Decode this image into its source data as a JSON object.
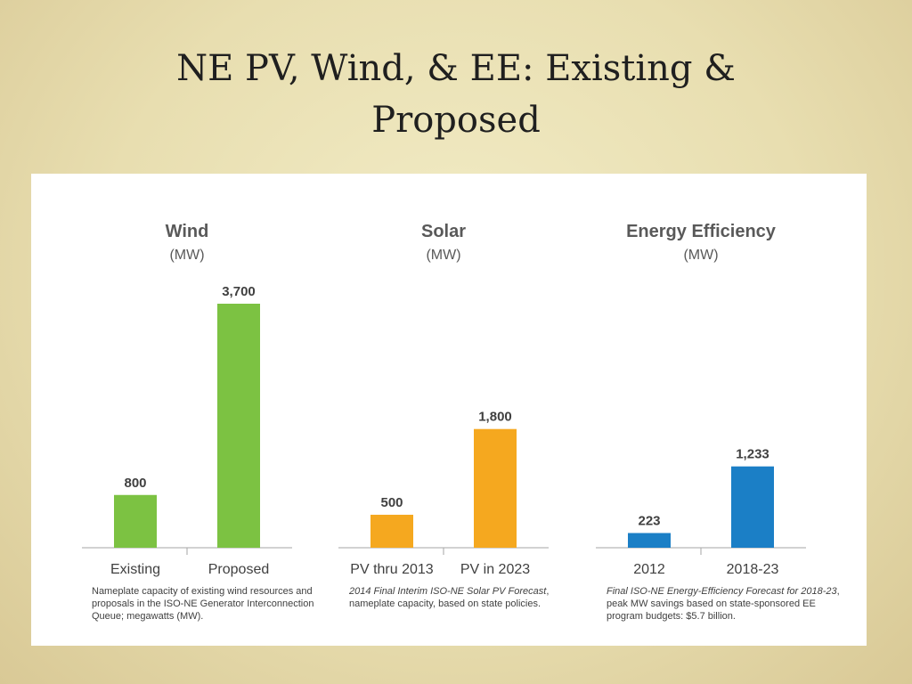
{
  "slide": {
    "title_line1": "NE PV, Wind, & EE: Existing &",
    "title_line2": "Proposed"
  },
  "chart_data": [
    {
      "type": "bar",
      "title": "Wind",
      "unit": "(MW)",
      "categories": [
        "Existing",
        "Proposed"
      ],
      "values": [
        800,
        3700
      ],
      "value_labels": [
        "800",
        "3,700"
      ],
      "color": "#7cc242",
      "note_parts": [
        {
          "text": "Nameplate capacity of existing wind resources and proposals in the ISO-NE Generator Interconnection Queue; megawatts (MW).",
          "italic": false
        }
      ]
    },
    {
      "type": "bar",
      "title": "Solar",
      "unit": "(MW)",
      "categories": [
        "PV thru 2013",
        "PV in 2023"
      ],
      "values": [
        500,
        1800
      ],
      "value_labels": [
        "500",
        "1,800"
      ],
      "color": "#f5a81f",
      "note_parts": [
        {
          "text": "2014 Final Interim ISO-NE Solar PV Forecast",
          "italic": true
        },
        {
          "text": ", nameplate capacity, based on state policies.",
          "italic": false
        }
      ]
    },
    {
      "type": "bar",
      "title": "Energy Efficiency",
      "unit": "(MW)",
      "categories": [
        "2012",
        "2018-23"
      ],
      "values": [
        223,
        1233
      ],
      "value_labels": [
        "223",
        "1,233"
      ],
      "color": "#1b7fc6",
      "note_parts": [
        {
          "text": "Final ISO-NE Energy-Efficiency Forecast for 2018-23",
          "italic": true
        },
        {
          "text": ", peak MW savings based on state-sponsored EE program budgets: $5.7 billion.",
          "italic": false
        }
      ]
    }
  ]
}
